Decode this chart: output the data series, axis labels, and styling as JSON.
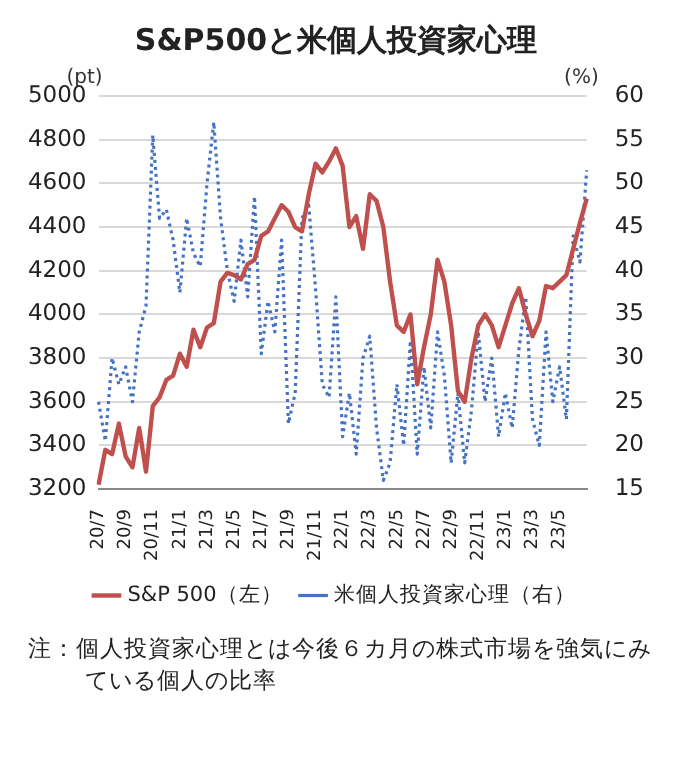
{
  "chart_data": {
    "type": "line",
    "title": "S&P500と米個人投資家心理",
    "ylabel": "(pt)",
    "y2label": "(%)",
    "categories": [
      "20/7",
      null,
      null,
      null,
      "20/9",
      null,
      null,
      null,
      "20/11",
      null,
      null,
      null,
      "21/1",
      null,
      null,
      null,
      "21/3",
      null,
      null,
      null,
      "21/5",
      null,
      null,
      null,
      "21/7",
      null,
      null,
      null,
      "21/9",
      null,
      null,
      null,
      "21/11",
      null,
      null,
      null,
      "22/1",
      null,
      null,
      null,
      "22/3",
      null,
      null,
      null,
      "22/5",
      null,
      null,
      null,
      "22/7",
      null,
      null,
      null,
      "22/9",
      null,
      null,
      null,
      "22/11",
      null,
      null,
      null,
      "23/1",
      null,
      null,
      null,
      "23/3",
      null,
      null,
      null,
      "23/5",
      null,
      null,
      null,
      null
    ],
    "series": [
      {
        "name": "S&P 500（左）",
        "color": "#c0504d",
        "line_style": "solid",
        "values": [
          3220,
          3380,
          3360,
          3500,
          3350,
          3300,
          3480,
          3280,
          3580,
          3620,
          3700,
          3720,
          3820,
          3760,
          3930,
          3850,
          3940,
          3960,
          4150,
          4190,
          4180,
          4160,
          4230,
          4250,
          4360,
          4380,
          4440,
          4500,
          4470,
          4400,
          4380,
          4550,
          4690,
          4650,
          4700,
          4760,
          4680,
          4400,
          4450,
          4300,
          4550,
          4520,
          4400,
          4150,
          3950,
          3920,
          4000,
          3680,
          3850,
          4000,
          4250,
          4150,
          3950,
          3650,
          3600,
          3800,
          3950,
          4000,
          3950,
          3850,
          3950,
          4050,
          4120,
          4000,
          3900,
          3970,
          4130,
          4120,
          4150,
          4180,
          4300,
          4420,
          4530
        ]
      },
      {
        "name": "米個人投資家心理（右）",
        "color": "#4472c4",
        "line_style": "dotted",
        "axis": "y2",
        "values": [
          25,
          20.5,
          30,
          27,
          29,
          25,
          33,
          36,
          55.5,
          46,
          47,
          43.5,
          37.5,
          46,
          42,
          40.5,
          50,
          57,
          46,
          40,
          36.5,
          43.5,
          37,
          48.5,
          30.5,
          36.5,
          33,
          43.5,
          22.5,
          26,
          46,
          47.5,
          38,
          27,
          25.5,
          37,
          21,
          26,
          19,
          30,
          32.5,
          22,
          16,
          18,
          27,
          20,
          32,
          19,
          29,
          22,
          33,
          28,
          18,
          26,
          18,
          24,
          33,
          25,
          30,
          21,
          26,
          22,
          31,
          37,
          23,
          20,
          33,
          25,
          29,
          23,
          44,
          41,
          51.5
        ]
      }
    ],
    "ylim": [
      3200,
      5000
    ],
    "yticks": [
      3200,
      3400,
      3600,
      3800,
      4000,
      4200,
      4400,
      4600,
      4800,
      5000
    ],
    "y2lim": [
      15,
      60
    ],
    "y2ticks": [
      15,
      20,
      25,
      30,
      35,
      40,
      45,
      50,
      55,
      60
    ],
    "grid": "y",
    "legend": "bottom",
    "marker": "none",
    "annotations": [
      "注：個人投資家心理とは今後６カ月の株式市場を強気にみている個人の比率"
    ]
  }
}
